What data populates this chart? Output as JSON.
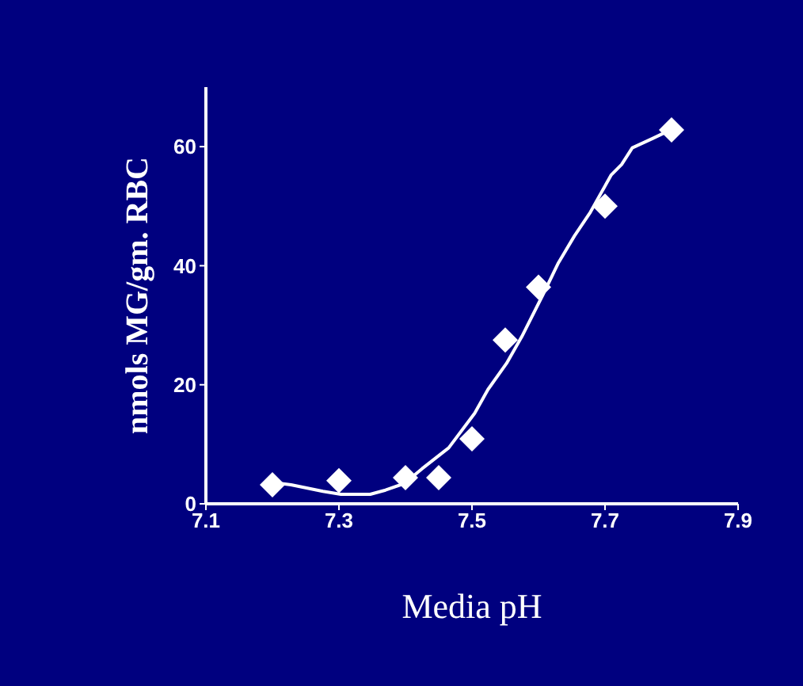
{
  "chart_data": {
    "type": "scatter",
    "xlabel": "Media pH",
    "ylabel": "nmols MG/gm. RBC",
    "xlim": [
      7.1,
      7.9
    ],
    "xticks": [
      7.1,
      7.3,
      7.5,
      7.7,
      7.9
    ],
    "ylim": [
      0,
      70
    ],
    "yticks": [
      0,
      20,
      40,
      60
    ],
    "marker": "diamond",
    "series": [
      {
        "color": "#ffffff",
        "x": [
          7.2,
          7.3,
          7.4,
          7.45,
          7.5,
          7.55,
          7.6,
          7.7,
          7.8
        ],
        "values": [
          3.2,
          3.9,
          4.4,
          4.4,
          10.9,
          27.5,
          36.4,
          50,
          62.8
        ]
      },
      {
        "type": "line",
        "color": "#ffffff",
        "marker": "none",
        "line_style": "solid",
        "x": [
          7.2,
          7.228,
          7.276,
          7.303,
          7.347,
          7.37,
          7.398,
          7.425,
          7.465,
          7.504,
          7.524,
          7.552,
          7.575,
          7.607,
          7.63,
          7.654,
          7.678,
          7.709,
          7.725,
          7.741,
          7.772,
          7.8
        ],
        "values": [
          3.6,
          3.2,
          2.1,
          1.6,
          1.6,
          2.3,
          3.4,
          5.9,
          9.4,
          15.2,
          19.2,
          23.6,
          28.1,
          35.2,
          40.5,
          45,
          49,
          55.2,
          57,
          59.8,
          61.4,
          62.9
        ]
      }
    ]
  }
}
